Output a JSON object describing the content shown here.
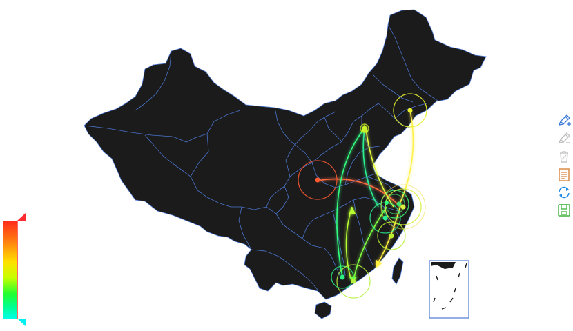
{
  "colors": {
    "land": "#1b1b1c",
    "border": "#4d79d6",
    "scale": [
      "#ff2a1a",
      "#ff7a10",
      "#ffe000",
      "#c8ff00",
      "#20ff30",
      "#00ff90",
      "#00ffe8"
    ]
  },
  "toolbox": [
    {
      "name": "mark-icon",
      "color": "#3a78d8",
      "enabled": true
    },
    {
      "name": "mark-undo-icon",
      "color": "#bdbdbd",
      "enabled": false
    },
    {
      "name": "mark-clear-icon",
      "color": "#bdbdbd",
      "enabled": false
    },
    {
      "name": "data-view-icon",
      "color": "#d9843a",
      "enabled": true
    },
    {
      "name": "restore-icon",
      "color": "#1e88e5",
      "enabled": true
    },
    {
      "name": "save-image-icon",
      "color": "#3cb43c",
      "enabled": true
    }
  ],
  "markers": [
    {
      "name": "north-marker",
      "color": "#c9f22a",
      "halo": false
    },
    {
      "name": "northeast-marker",
      "color": "#e6f02c",
      "halo": true
    },
    {
      "name": "west-marker",
      "color": "#ff5a30",
      "halo": true
    },
    {
      "name": "east-marker-a",
      "color": "#40e870",
      "halo": true
    },
    {
      "name": "east-marker-b",
      "color": "#d8f040",
      "halo": true
    },
    {
      "name": "east-marker-c",
      "color": "#2cf090",
      "halo": true
    },
    {
      "name": "southeast-marker",
      "color": "#b9ee30",
      "halo": true
    },
    {
      "name": "south-marker-a",
      "color": "#2cf080",
      "halo": true
    },
    {
      "name": "south-marker-b",
      "color": "#b6f040",
      "halo": true
    }
  ],
  "routes": [
    {
      "name": "route-northeast-to-east",
      "color": "#fff14a"
    },
    {
      "name": "route-west-to-east",
      "color": "#ff6a40"
    },
    {
      "name": "route-south-to-north",
      "color": "#30ff80"
    },
    {
      "name": "route-north-to-east",
      "color": "#e6ff40"
    },
    {
      "name": "route-east-to-south",
      "color": "#80ff40"
    },
    {
      "name": "route-south-to-central",
      "color": "#b8ff30"
    },
    {
      "name": "route-east-to-southeast",
      "color": "#fff040"
    }
  ]
}
